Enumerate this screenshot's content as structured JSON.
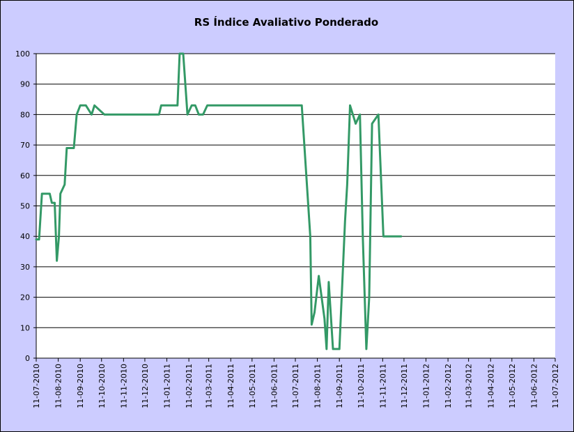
{
  "chart_data": {
    "type": "line",
    "title": "RS Índice Avaliativo Ponderado",
    "xlabel": "",
    "ylabel": "",
    "ylim": [
      0,
      100
    ],
    "y_ticks": [
      0,
      10,
      20,
      30,
      40,
      50,
      60,
      70,
      80,
      90,
      100
    ],
    "x_range": [
      "11-07-2010",
      "11-07-2012"
    ],
    "x_ticks": [
      "11-07-2010",
      "11-08-2010",
      "11-09-2010",
      "11-10-2010",
      "11-11-2010",
      "11-12-2010",
      "11-01-2011",
      "11-02-2011",
      "11-03-2011",
      "11-04-2011",
      "11-05-2011",
      "11-06-2011",
      "11-07-2011",
      "11-08-2011",
      "11-09-2011",
      "11-10-2011",
      "11-11-2011",
      "11-12-2011",
      "11-01-2012",
      "11-02-2012",
      "11-03-2012",
      "11-04-2012",
      "11-05-2012",
      "11-06-2012",
      "11-07-2012"
    ],
    "grid": true,
    "legend": "none",
    "colors": {
      "line": "#339966",
      "plot_bg": "#ffffff",
      "chart_bg": "#ccccff",
      "grid": "#000000"
    },
    "series": [
      {
        "x": [
          "2010-07-11",
          "2010-07-14",
          "2010-07-15",
          "2010-07-19",
          "2010-07-25",
          "2010-07-30",
          "2010-08-02",
          "2010-08-06",
          "2010-08-09",
          "2010-08-12",
          "2010-08-14",
          "2010-08-20",
          "2010-08-23",
          "2010-09-02",
          "2010-09-06",
          "2010-09-11",
          "2010-09-13",
          "2010-09-16",
          "2010-09-19",
          "2010-09-27",
          "2010-10-01",
          "2010-10-15",
          "2010-10-19",
          "2010-10-25",
          "2010-10-29",
          "2010-11-03",
          "2010-11-11",
          "2010-12-11",
          "2010-12-31",
          "2011-01-03",
          "2011-01-08",
          "2011-01-15",
          "2011-01-26",
          "2011-01-29",
          "2011-02-03",
          "2011-02-09",
          "2011-02-15",
          "2011-02-20",
          "2011-02-25",
          "2011-03-03",
          "2011-03-09",
          "2011-03-15",
          "2011-03-20",
          "2011-04-01",
          "2011-07-20",
          "2011-08-01",
          "2011-08-03",
          "2011-08-07",
          "2011-08-13",
          "2011-08-21",
          "2011-08-24",
          "2011-08-27",
          "2011-09-02",
          "2011-09-04",
          "2011-09-05",
          "2011-09-11",
          "2011-09-19",
          "2011-09-22",
          "2011-09-26",
          "2011-10-04",
          "2011-10-10",
          "2011-10-14",
          "2011-10-19",
          "2011-10-23",
          "2011-10-27",
          "2011-11-05",
          "2011-11-12",
          "2011-11-15",
          "2011-11-17",
          "2011-11-19",
          "2011-11-24",
          "2011-11-27",
          "2011-12-03",
          "2011-12-07"
        ],
        "y": [
          39,
          39,
          39,
          54,
          54,
          54,
          51,
          51,
          32,
          40,
          54,
          57,
          69,
          69,
          80,
          83,
          83,
          83,
          83,
          80,
          83,
          80,
          80,
          80,
          80,
          80,
          80,
          80,
          80,
          83,
          83,
          83,
          83,
          100,
          100,
          80,
          83,
          83,
          80,
          80,
          83,
          83,
          83,
          83,
          83,
          40,
          11,
          15,
          27,
          13,
          3,
          25,
          3,
          3,
          3,
          3,
          45,
          57,
          83,
          77,
          80,
          40,
          3,
          20,
          77,
          80,
          40,
          40,
          40,
          40,
          40,
          40,
          40,
          40
        ]
      }
    ]
  }
}
